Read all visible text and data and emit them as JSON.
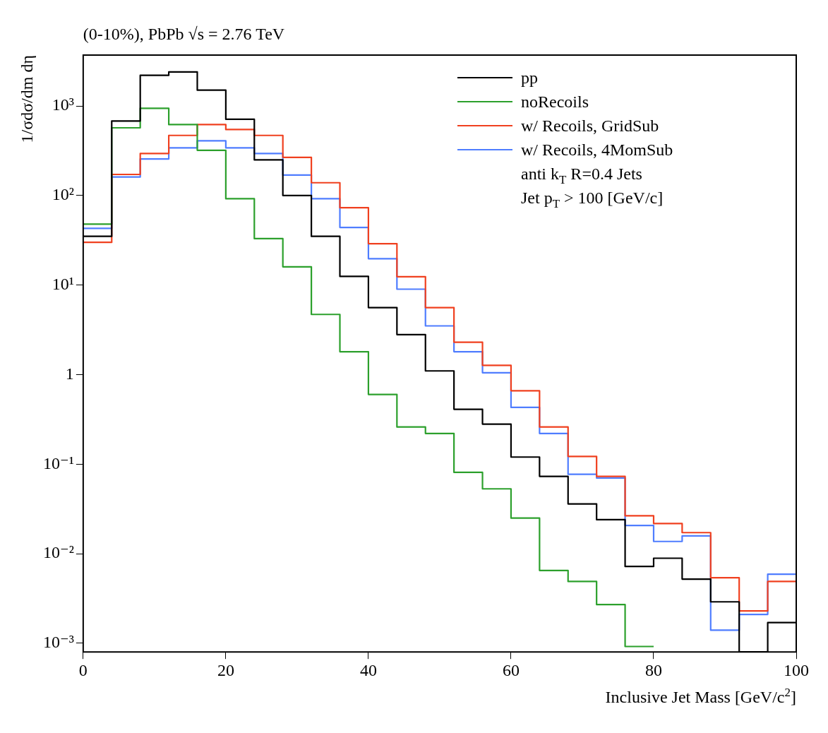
{
  "chart_data": {
    "type": "histogram",
    "title": "(0-10%), PbPb √s = 2.76 TeV",
    "xlabel": "Inclusive Jet Mass [GeV/c$^{2}$]",
    "ylabel": "1/σdσ/dm dη",
    "bins": [
      0,
      4,
      8,
      12,
      16,
      20,
      24,
      28,
      32,
      36,
      40,
      44,
      48,
      52,
      56,
      60,
      64,
      68,
      72,
      76,
      80,
      84,
      88,
      92,
      96,
      100
    ],
    "series": [
      {
        "name": "pp",
        "color": "#000000",
        "values": [
          35,
          680,
          2200,
          2400,
          1500,
          710,
          250,
          100,
          35,
          12.5,
          5.6,
          2.8,
          1.1,
          0.41,
          0.28,
          0.12,
          0.073,
          0.036,
          0.024,
          0.0072,
          0.0089,
          0.0052,
          0.0029,
          0.0008,
          0.0017
        ]
      },
      {
        "name": "noRecoils",
        "color": "#2ca02c",
        "bins": [
          0,
          4,
          8,
          12,
          16,
          20,
          24,
          28,
          32,
          36,
          40,
          44,
          48,
          52,
          56,
          60,
          64,
          68,
          72,
          76,
          80
        ],
        "values": [
          48,
          570,
          940,
          620,
          320,
          92,
          33,
          16,
          4.7,
          1.8,
          0.6,
          0.26,
          0.22,
          0.081,
          0.053,
          0.025,
          0.0065,
          0.0049,
          0.0027,
          0.00092
        ]
      },
      {
        "name": "w/ Recoils, GridSub",
        "color": "#f0401f",
        "values": [
          30,
          172,
          294,
          469,
          620,
          546,
          469,
          267,
          139,
          73,
          29,
          12.4,
          5.6,
          2.3,
          1.27,
          0.66,
          0.26,
          0.122,
          0.073,
          0.0265,
          0.0217,
          0.0172,
          0.0054,
          0.0023,
          0.0049
        ]
      },
      {
        "name": "w/ Recoils, 4MomSub",
        "color": "#4f7dff",
        "values": [
          43,
          161,
          256,
          340,
          408,
          340,
          294,
          169,
          92,
          44,
          19.7,
          9,
          3.5,
          1.8,
          1.05,
          0.43,
          0.22,
          0.077,
          0.07,
          0.0207,
          0.0137,
          0.0158,
          0.0014,
          0.0021,
          0.0059
        ]
      }
    ],
    "annotations": [
      "anti k$_{T}$ R=0.4 Jets",
      "Jet p$_{T}$ > 100 [GeV/c]"
    ],
    "xlim": [
      0,
      100
    ],
    "xticks": [
      0,
      20,
      40,
      60,
      80,
      100
    ],
    "ylim": [
      0.0008,
      3700
    ],
    "log": "y",
    "yticks": [
      {
        "value": 0.001,
        "label": "10⁻³"
      },
      {
        "value": 0.01,
        "label": "10⁻²"
      },
      {
        "value": 0.1,
        "label": "10⁻¹"
      },
      1,
      {
        "value": 10,
        "label": "10¹"
      },
      {
        "value": 100,
        "label": "10²"
      },
      {
        "value": 1000,
        "label": "10³"
      }
    ],
    "legend": "top right"
  }
}
